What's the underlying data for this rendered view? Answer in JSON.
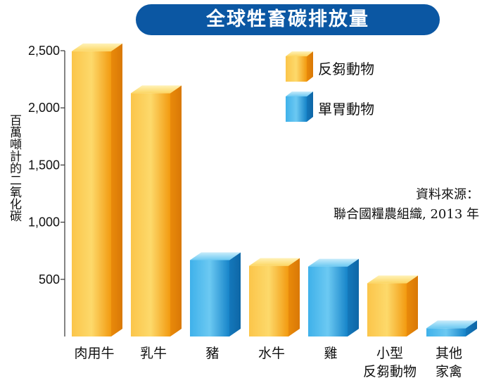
{
  "chart_data": {
    "type": "bar",
    "title": "全球牲畜碳排放量",
    "ylabel": "百萬噸計的二氧化碳",
    "categories": [
      [
        "肉用牛"
      ],
      [
        "乳牛"
      ],
      [
        "豬"
      ],
      [
        "水牛"
      ],
      [
        "雞"
      ],
      [
        "小型",
        "反芻動物"
      ],
      [
        "其他",
        "家禽"
      ]
    ],
    "values": [
      2495,
      2128,
      668,
      618,
      612,
      466,
      72
    ],
    "bar_groups": [
      "反芻動物",
      "反芻動物",
      "單胃動物",
      "反芻動物",
      "單胃動物",
      "反芻動物",
      "單胃動物"
    ],
    "ylim": [
      0,
      2500
    ],
    "yticks": [
      500,
      1000,
      1500,
      2000,
      2500
    ],
    "ytick_labels": [
      "500",
      "1,000",
      "1,500",
      "2,000",
      "2,500"
    ],
    "legend": [
      {
        "name": "反芻動物",
        "color": "#f6a91c"
      },
      {
        "name": "單胃動物",
        "color": "#1f9ad9"
      }
    ],
    "legend_position": "top-right",
    "source_line1": "資料來源：",
    "source_line2": "聯合國糧農組織, 2013 年"
  }
}
